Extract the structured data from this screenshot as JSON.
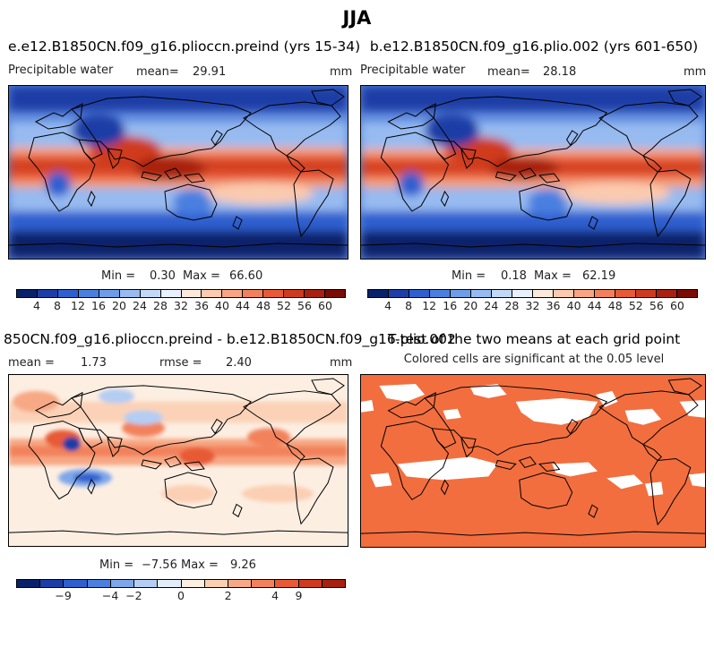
{
  "title": "JJA",
  "panels": [
    {
      "title": "e.e12.B1850CN.f09_g16.plioccn.preind (yrs 15-34)",
      "variable": "Precipitable water",
      "mean_label": "mean=",
      "mean_value": "29.91",
      "units": "mm",
      "min_label": "Min =",
      "min_value": "0.30",
      "max_label": "Max =",
      "max_value": "66.60"
    },
    {
      "title": "b.e12.B1850CN.f09_g16.plio.002 (yrs 601-650)",
      "variable": "Precipitable water",
      "mean_label": "mean=",
      "mean_value": "28.18",
      "units": "mm",
      "min_label": "Min =",
      "min_value": "0.18",
      "max_label": "Max =",
      "max_value": "62.19"
    },
    {
      "title": "850CN.f09_g16.plioccn.preind - b.e12.B1850CN.f09_g16.plio.002",
      "mean_label": "mean =",
      "mean_value": "1.73",
      "rmse_label": "rmse =",
      "rmse_value": "2.40",
      "units": "mm",
      "min_label": "Min =",
      "min_value": "−7.56",
      "max_label": "Max =",
      "max_value": "9.26"
    },
    {
      "title": "T-test of the two means at each grid point",
      "subtitle": "Colored cells are significant at the 0.05 level"
    }
  ],
  "colorbars": {
    "abs": {
      "ticks": [
        "4",
        "8",
        "12",
        "16",
        "20",
        "24",
        "28",
        "32",
        "36",
        "40",
        "44",
        "48",
        "52",
        "56",
        "60"
      ],
      "colors": [
        "#08216b",
        "#1c3ea6",
        "#2e5fcf",
        "#4a7fe0",
        "#6d9ce8",
        "#97bbf0",
        "#c2d8f6",
        "#e7f0fc",
        "#fde9dc",
        "#fbcaaf",
        "#f7a582",
        "#f2805a",
        "#e75a35",
        "#cf3a1f",
        "#a82010",
        "#7a0a05"
      ]
    },
    "diff": {
      "ticks": [
        "−9",
        "−4",
        "−2",
        "0",
        "2",
        "4",
        "9"
      ],
      "colors": [
        "#08216b",
        "#1c3ea6",
        "#2e5fcf",
        "#4a7fe0",
        "#7ea7ea",
        "#b4cdf3",
        "#e2ecfb",
        "#fdeee2",
        "#fbcfb3",
        "#f7a884",
        "#f2825c",
        "#e75a35",
        "#cf3a1f",
        "#a82010"
      ]
    }
  },
  "chart_data": [
    {
      "type": "heatmap",
      "title": "e.e12.B1850CN.f09_g16.plioccn.preind (yrs 15-34)",
      "variable": "Precipitable water",
      "units": "mm",
      "mean": 29.91,
      "min": 0.3,
      "max": 66.6,
      "colorbar_levels": [
        4,
        8,
        12,
        16,
        20,
        24,
        28,
        32,
        36,
        40,
        44,
        48,
        52,
        56,
        60
      ]
    },
    {
      "type": "heatmap",
      "title": "b.e12.B1850CN.f09_g16.plio.002 (yrs 601-650)",
      "variable": "Precipitable water",
      "units": "mm",
      "mean": 28.18,
      "min": 0.18,
      "max": 62.19,
      "colorbar_levels": [
        4,
        8,
        12,
        16,
        20,
        24,
        28,
        32,
        36,
        40,
        44,
        48,
        52,
        56,
        60
      ]
    },
    {
      "type": "heatmap",
      "title": "850CN.f09_g16.plioccn.preind - b.e12.B1850CN.f09_g16.plio.002",
      "units": "mm",
      "mean": 1.73,
      "rmse": 2.4,
      "min": -7.56,
      "max": 9.26,
      "colorbar_levels": [
        -9,
        -4,
        -2,
        0,
        2,
        4,
        9
      ]
    },
    {
      "type": "heatmap",
      "title": "T-test of the two means at each grid point",
      "subtitle": "Colored cells are significant at the 0.05 level"
    }
  ]
}
